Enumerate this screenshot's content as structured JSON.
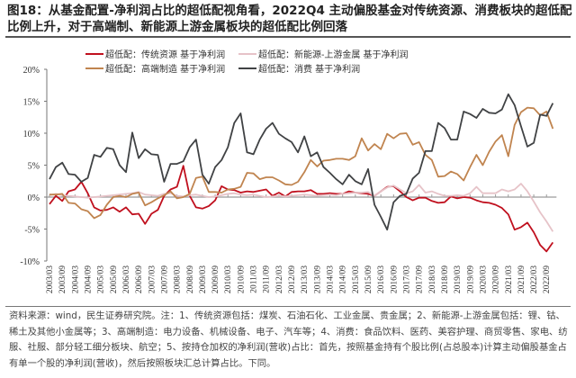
{
  "title": "图18：从基金配置-净利润占比的超低配视角看，2022Q4 主动偏股基金对传统资源、消费板块的超低配比例上升，对于高端制、新能源上游金属板块的超低配比例回落",
  "footnote": "资料来源：wind，民生证券研究院。注：1、传统资源包括：煤炭、石油石化、工业金属、贵金属；2、新能源-上游金属包括：锂、钴、稀土及其他小金属等；3、高端制造：电力设备、机械设备、电子、汽车等；4、消费：食品饮料、医药、美容护理、商贸零售、家电、纺服、社服、部分轻工细分板块、航空；5、按持仓加权的净利润(营收)占比：首先，按照基金持有个股比例(占总股本)计算主动偏股基金占有单一个股的净利润(营收)，然后按照板块汇总计算占比。下同。",
  "chart_data": {
    "type": "line",
    "x_start": "2003/03",
    "x_end": "2022/12",
    "x_frequency": "quarterly",
    "x_tick_labels": [
      "2003/03",
      "2003/09",
      "2004/03",
      "2004/09",
      "2005/03",
      "2005/09",
      "2006/03",
      "2006/09",
      "2007/03",
      "2007/09",
      "2008/03",
      "2008/09",
      "2009/03",
      "2009/09",
      "2010/03",
      "2010/09",
      "2011/03",
      "2011/09",
      "2012/03",
      "2012/09",
      "2013/03",
      "2013/09",
      "2014/03",
      "2014/09",
      "2015/03",
      "2015/09",
      "2016/03",
      "2016/09",
      "2017/03",
      "2017/09",
      "2018/03",
      "2018/09",
      "2019/03",
      "2019/09",
      "2020/03",
      "2020/09",
      "2021/03",
      "2021/09",
      "2022/03",
      "2022/09"
    ],
    "y_tick_labels": [
      "20%",
      "15%",
      "10%",
      "5%",
      "0%",
      "-5%",
      "-10%"
    ],
    "ylim": [
      -10,
      20
    ],
    "y_unit": "%",
    "grid": false,
    "legend_position": "top",
    "series": [
      {
        "name": "超低配：传统资源 基于净利润",
        "color": "#c0101e",
        "values": [
          -1.1,
          0.2,
          -0.6,
          0.9,
          1.2,
          2.4,
          0.6,
          -1.6,
          -2.1,
          -2.0,
          -1.6,
          -2.3,
          -1.6,
          -2.7,
          -2.6,
          -4.2,
          -2.6,
          -2.0,
          0.2,
          1.2,
          1.6,
          4.9,
          0.2,
          -1.6,
          -1.8,
          -1.4,
          -0.5,
          1.7,
          1.2,
          1.1,
          0.7,
          0.9,
          0.8,
          1.0,
          1.2,
          0.2,
          0.7,
          0.1,
          0.8,
          0.9,
          0.9,
          1.1,
          0.5,
          0.5,
          0.6,
          0.5,
          0.5,
          0.9,
          0.7,
          0.6,
          0.5,
          0.2,
          0.9,
          1.6,
          1.7,
          0.9,
          0.0,
          -0.5,
          -0.1,
          -0.1,
          -0.6,
          -0.9,
          -0.8,
          0.1,
          -0.2,
          0.0,
          -0.1,
          -0.5,
          -0.8,
          -0.9,
          -1.2,
          -1.7,
          -2.7,
          -5.1,
          -4.7,
          -4.0,
          -5.5,
          -7.5,
          -8.5,
          -7.1
        ]
      },
      {
        "name": "超低配：新能源-上游金属 基于净利润",
        "color": "#e6c3c8",
        "values": [
          0.3,
          0.5,
          0.3,
          0.2,
          0.1,
          0.0,
          -0.1,
          0.0,
          0.1,
          0.2,
          0.3,
          0.4,
          0.5,
          0.6,
          0.8,
          0.4,
          0.3,
          0.2,
          0.5,
          0.6,
          0.2,
          0.1,
          0.3,
          0.4,
          0.2,
          0.0,
          0.1,
          0.3,
          0.5,
          0.6,
          0.4,
          0.3,
          0.4,
          0.2,
          0.0,
          0.1,
          0.2,
          0.1,
          0.2,
          0.3,
          0.4,
          0.3,
          0.2,
          0.3,
          0.4,
          0.3,
          0.5,
          0.6,
          0.7,
          0.7,
          0.8,
          0.2,
          0.9,
          1.5,
          1.8,
          1.2,
          0.6,
          0.9,
          1.9,
          0.7,
          0.9,
          0.5,
          0.2,
          0.2,
          0.3,
          0.2,
          0.6,
          1.6,
          0.6,
          0.6,
          0.6,
          1.2,
          0.9,
          1.2,
          2.1,
          0.9,
          -0.7,
          -2.4,
          -3.8,
          -5.4
        ]
      },
      {
        "name": "超低配：高端制造 基于净利润",
        "color": "#c0844f",
        "values": [
          0.4,
          0.4,
          0.5,
          -0.9,
          -1.0,
          -1.9,
          -2.2,
          -3.3,
          -2.8,
          -1.2,
          0.0,
          0.2,
          0.0,
          0.5,
          0.7,
          -1.3,
          -0.8,
          -0.2,
          0.3,
          0.9,
          -0.2,
          0.0,
          0.5,
          3.0,
          3.2,
          0.8,
          0.8,
          0.7,
          1.2,
          1.3,
          1.6,
          3.8,
          3.7,
          2.8,
          3.1,
          3.1,
          2.6,
          2.0,
          1.9,
          2.4,
          3.9,
          5.8,
          4.8,
          5.7,
          5.8,
          6.0,
          6.0,
          5.8,
          6.4,
          9.2,
          7.3,
          8.3,
          7.5,
          9.9,
          9.2,
          9.9,
          10.0,
          8.2,
          8.6,
          6.6,
          5.8,
          3.2,
          3.3,
          4.0,
          3.6,
          2.6,
          4.7,
          6.6,
          5.0,
          7.1,
          8.7,
          9.7,
          6.4,
          11.3,
          13.3,
          14.0,
          13.9,
          12.8,
          13.4,
          10.7
        ]
      },
      {
        "name": "超低配：消费 基于净利润",
        "color": "#404244",
        "values": [
          2.8,
          4.7,
          5.4,
          3.6,
          3.5,
          2.4,
          3.0,
          6.6,
          6.3,
          7.7,
          7.5,
          5.0,
          3.9,
          10.1,
          6.1,
          7.5,
          6.7,
          6.6,
          2.4,
          5.2,
          5.2,
          5.6,
          7.8,
          9.0,
          3.5,
          2.1,
          4.7,
          5.8,
          7.8,
          11.6,
          13.1,
          7.0,
          6.7,
          9.0,
          10.7,
          11.6,
          9.9,
          9.2,
          8.6,
          7.0,
          9.5,
          6.4,
          7.0,
          4.7,
          3.8,
          2.8,
          2.0,
          3.5,
          2.5,
          2.0,
          4.4,
          -1.2,
          -3.1,
          -5.1,
          -0.8,
          0.2,
          0.5,
          2.9,
          3.8,
          7.2,
          7.2,
          11.6,
          10.8,
          9.0,
          9.0,
          13.4,
          13.0,
          12.4,
          13.8,
          13.2,
          13.1,
          13.7,
          16.1,
          14.4,
          11.1,
          7.9,
          8.5,
          12.9,
          12.7,
          14.7
        ]
      }
    ]
  }
}
